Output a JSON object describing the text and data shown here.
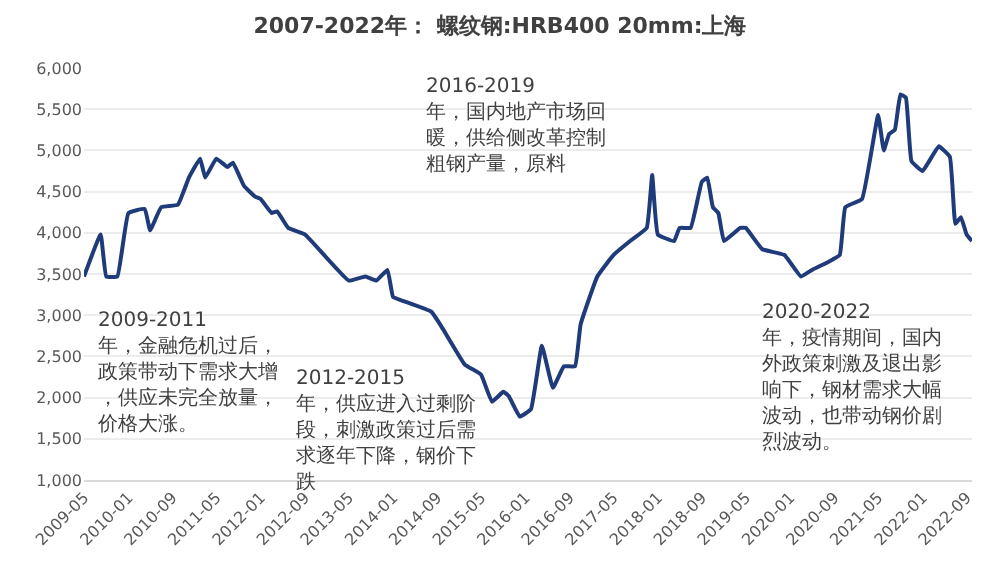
{
  "chart_data": {
    "type": "line",
    "title": "2007-2022年： 螺纹钢:HRB400 20mm:上海",
    "x": [
      "2009-05",
      "2009-08",
      "2009-09",
      "2009-11",
      "2010-01",
      "2010-04",
      "2010-05",
      "2010-07",
      "2010-10",
      "2010-12",
      "2011-02",
      "2011-03",
      "2011-05",
      "2011-07",
      "2011-08",
      "2011-10",
      "2011-12",
      "2012-01",
      "2012-03",
      "2012-04",
      "2012-06",
      "2012-09",
      "2013-05",
      "2013-08",
      "2013-10",
      "2013-12",
      "2014-01",
      "2014-03",
      "2014-08",
      "2014-10",
      "2015-02",
      "2015-05",
      "2015-07",
      "2015-09",
      "2015-10",
      "2015-12",
      "2016-02",
      "2016-04",
      "2016-06",
      "2016-08",
      "2016-10",
      "2016-11",
      "2017-02",
      "2017-05",
      "2017-08",
      "2017-11",
      "2017-12",
      "2018-01",
      "2018-04",
      "2018-05",
      "2018-07",
      "2018-09",
      "2018-10",
      "2018-11",
      "2018-12",
      "2019-01",
      "2019-04",
      "2019-05",
      "2019-08",
      "2019-12",
      "2020-03",
      "2020-05",
      "2020-08",
      "2020-10",
      "2020-11",
      "2021-02",
      "2021-05",
      "2021-06",
      "2021-07",
      "2021-08",
      "2021-09",
      "2021-10",
      "2021-11",
      "2022-01",
      "2022-04",
      "2022-06",
      "2022-07",
      "2022-08",
      "2022-09",
      "2022-10"
    ],
    "series": [
      {
        "color": "#1f3b7a",
        "values": [
          3470,
          3980,
          3470,
          3470,
          4240,
          4290,
          4030,
          4310,
          4340,
          4670,
          4900,
          4670,
          4900,
          4800,
          4850,
          4570,
          4440,
          4410,
          4240,
          4260,
          4060,
          3980,
          3420,
          3470,
          3420,
          3550,
          3220,
          3170,
          3040,
          2840,
          2400,
          2280,
          1950,
          2070,
          2020,
          1770,
          1860,
          2630,
          2120,
          2380,
          2380,
          2890,
          3470,
          3730,
          3900,
          4060,
          4700,
          3980,
          3900,
          4060,
          4060,
          4620,
          4670,
          4310,
          4240,
          3900,
          4060,
          4060,
          3800,
          3730,
          3470,
          3550,
          3650,
          3730,
          4310,
          4410,
          5430,
          5000,
          5200,
          5250,
          5680,
          5640,
          4870,
          4750,
          5050,
          4920,
          4110,
          4190,
          3980,
          3900
        ]
      }
    ],
    "xlim": [
      "2009-05",
      "2022-10"
    ],
    "xticks": [
      {
        "value": "2009-05",
        "label": "2009-05"
      },
      {
        "value": "2010-01",
        "label": "2010-01"
      },
      {
        "value": "2010-09",
        "label": "2010-09"
      },
      {
        "value": "2011-05",
        "label": "2011-05"
      },
      {
        "value": "2012-01",
        "label": "2012-01"
      },
      {
        "value": "2012-09",
        "label": "2012-09"
      },
      {
        "value": "2013-05",
        "label": "2013-05"
      },
      {
        "value": "2014-01",
        "label": "2014-01"
      },
      {
        "value": "2014-09",
        "label": "2014-09"
      },
      {
        "value": "2015-05",
        "label": "2015-05"
      },
      {
        "value": "2016-01",
        "label": "2016-01"
      },
      {
        "value": "2016-09",
        "label": "2016-09"
      },
      {
        "value": "2017-05",
        "label": "2017-05"
      },
      {
        "value": "2018-01",
        "label": "2018-01"
      },
      {
        "value": "2018-09",
        "label": "2018-09"
      },
      {
        "value": "2019-05",
        "label": "2019-05"
      },
      {
        "value": "2020-01",
        "label": "2020-01"
      },
      {
        "value": "2020-09",
        "label": "2020-09"
      },
      {
        "value": "2021-05",
        "label": "2021-05"
      },
      {
        "value": "2022-01",
        "label": "2022-01"
      },
      {
        "value": "2022-09",
        "label": "2022-09"
      }
    ],
    "ylim": [
      1000,
      6000
    ],
    "yticks": [
      {
        "value": 1000,
        "label": "1,000"
      },
      {
        "value": 1500,
        "label": "1,500"
      },
      {
        "value": 2000,
        "label": "2,000"
      },
      {
        "value": 2500,
        "label": "2,500"
      },
      {
        "value": 3000,
        "label": "3,000"
      },
      {
        "value": 3500,
        "label": "3,500"
      },
      {
        "value": 4000,
        "label": "4,000"
      },
      {
        "value": 4500,
        "label": "4,500"
      },
      {
        "value": 5000,
        "label": "5,000"
      },
      {
        "value": 5500,
        "label": "5,500"
      },
      {
        "value": 6000,
        "label": "6,000"
      }
    ],
    "grid": "y",
    "marker": "none",
    "line_style": "solid",
    "annotations": [
      "2009-2011年，金融危机过后，政策带动下需求大增，供应未完全放量，价格大涨。",
      "2012-2015年，供应进入过剩阶段，刺激政策过后需求逐年下降，钢价下跌",
      "2016-2019年，国内地产市场回暖，供给侧改革控制粗钢产量，原料",
      "2020-2022年，疫情期间，国内外政策刺激及退出影响下，钢材需求大幅波动，也带动钢价剧烈波动。"
    ]
  }
}
